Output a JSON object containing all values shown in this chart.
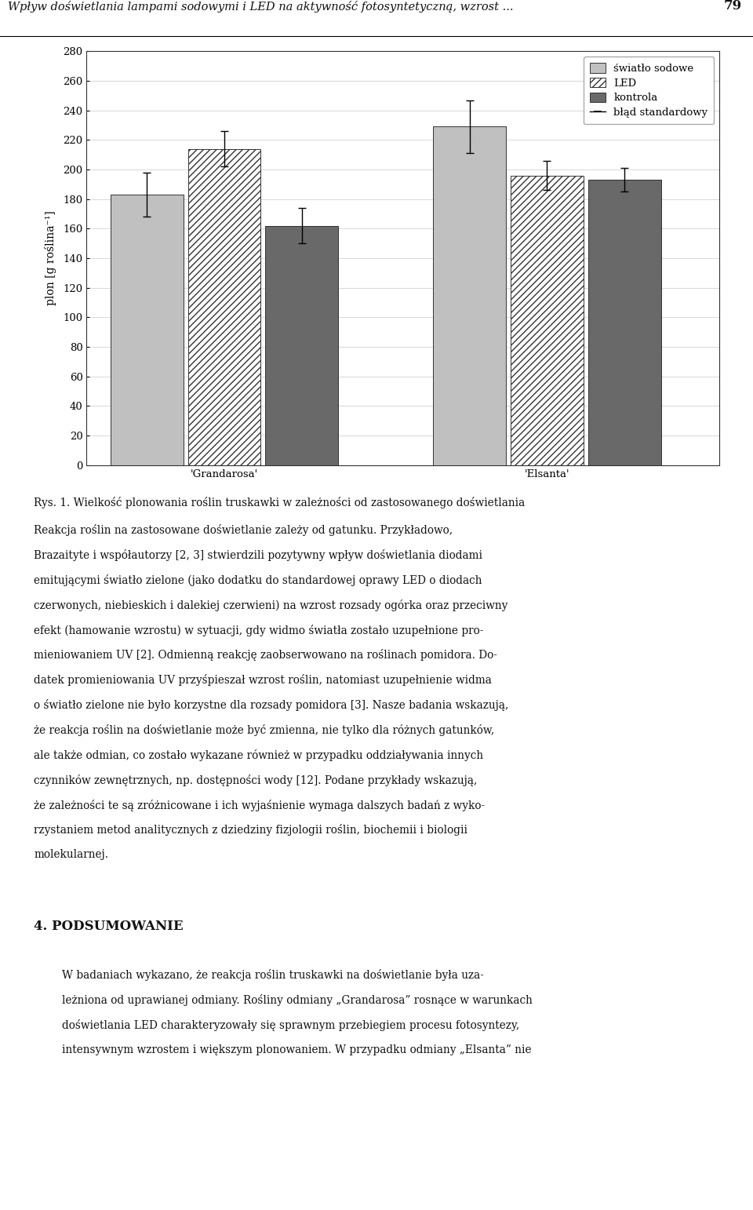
{
  "page_title": "Wpływ doświetlania lampami sodowymi i LED na aktywność fotosyntetyczną, wzrost ...",
  "page_number": "79",
  "groups": [
    "'Grandarosa'",
    "'Elsanta'"
  ],
  "categories": [
    "światło sodowe",
    "LED",
    "kontrola"
  ],
  "values_grandarosa": [
    183,
    214,
    162
  ],
  "values_elsanta": [
    229,
    196,
    193
  ],
  "errors_grandarosa": [
    15,
    12,
    12
  ],
  "errors_elsanta": [
    18,
    10,
    8
  ],
  "bar_colors": [
    "#c0c0c0",
    "#ffffff",
    "#696969"
  ],
  "bar_edgecolor": "#333333",
  "hatch_patterns": [
    "",
    "////",
    ""
  ],
  "ylabel": "plon [g roślina⁻¹]",
  "ylim": [
    0,
    280
  ],
  "yticks": [
    0,
    20,
    40,
    60,
    80,
    100,
    120,
    140,
    160,
    180,
    200,
    220,
    240,
    260,
    280
  ],
  "legend_labels": [
    "światło sodowe",
    "LED",
    "kontrola",
    "błąd standardowy"
  ],
  "page_bg": "#ffffff",
  "chart_outer_bg": "#faf5e4",
  "plot_bg": "#ffffff",
  "bar_width": 0.18,
  "caption_bold": "Rys. 1. Wielkość plonowania roślin truskawki w zależności od zastosowanego doświetlania",
  "caption_text": "Reakcja roślin na zastosowane doświetlanie zależy od gatunku. Przykładowo, Brazaityte i współautorzy [2, 3] stwierdzili pozytywny wpływ doświetlania diodami emitującymi światło zielone (jako dodatku do standardowej oprawy LED o diodach czerwonych, niebieskich i dalekiej czerwieni) na wzrost rozsady ogórka oraz przeciwny efekt (hamowanie wzrostu) w sytuacji, gdy widmo światła zostało uzupełnione promieniowaniem UV [2]. Odmienną reakcję zaobserwowano na roślinach pomidora. Dodatek promieniowania UV przyśpieszał wzrost roślin, natomiast uzupełnienie widma o światło zielone nie było korzystne dla rozsady pomidora [3]. Nasze badania wskazują, że reakcja roślin na doświetlanie może być zmienna, nie tylko dla różnych gatunków, ale także odmian, co zostało wykazane również w przypadku oddziaływania innych czynników zewnętrznych, np. dostępności wody [12]. Podane przykłady wskazują, że zależności te są zróżnicowane i ich wyjaśnienie wymaga dalszych badań z wykorzystaniem metod analitycznych z dziedziny fizjologii roślin, biochemii i biologii molekularnej.",
  "section_title": "4. PODSUMOWANIE",
  "section_text": "W badaniach wykazano, że reakcja roślin truskawki na doświetlanie była uzależniona od uprawianej odmiany. Rośliny odmiany „Grandarosa” rosnące w warunkach doświetlania LED charakteryzowały się sprawnym przebiegiem procesu fotosyntezy, intensywnym wzrostem i większym plonowaniem. W przypadku odmiany „Elsanta” nie"
}
